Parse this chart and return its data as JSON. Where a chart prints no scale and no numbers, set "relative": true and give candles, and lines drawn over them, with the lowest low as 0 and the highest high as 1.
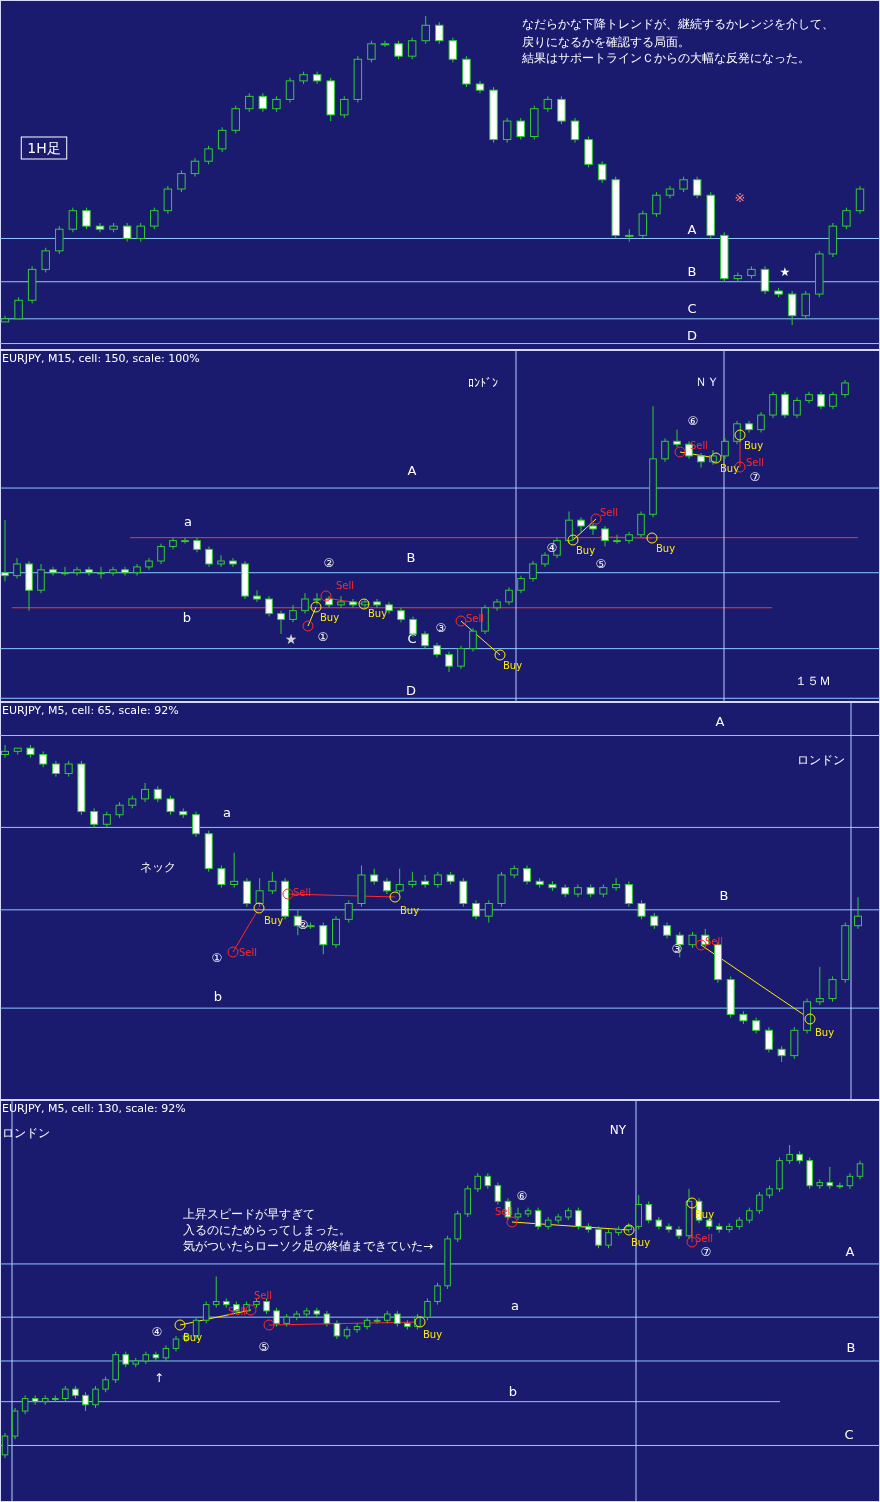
{
  "chart_data": [
    {
      "type": "candlestick",
      "relative": true,
      "tick_labels": false,
      "color": "#33cc33",
      "categories": [
        null,
        null,
        null,
        null,
        null,
        null,
        null,
        null,
        null,
        null,
        null,
        null,
        null,
        null,
        null,
        null,
        null,
        null,
        null,
        null,
        null,
        null,
        null,
        null,
        null,
        null,
        null,
        null,
        null,
        null,
        null,
        null,
        null,
        null,
        null,
        null,
        null,
        null,
        null,
        null,
        null,
        null,
        null,
        null,
        null,
        null,
        null,
        null,
        null,
        null,
        null,
        null,
        null,
        null,
        null,
        null,
        null,
        null,
        null,
        null,
        null,
        null,
        null,
        null
      ],
      "ohlc": [
        [
          0.01,
          0.03,
          0.01,
          0.02
        ],
        [
          0.02,
          0.09,
          0.02,
          0.08
        ],
        [
          0.08,
          0.19,
          0.07,
          0.18
        ],
        [
          0.18,
          0.25,
          0.17,
          0.24
        ],
        [
          0.24,
          0.32,
          0.23,
          0.31
        ],
        [
          0.31,
          0.38,
          0.3,
          0.37
        ],
        [
          0.37,
          0.38,
          0.31,
          0.32
        ],
        [
          0.32,
          0.33,
          0.3,
          0.31
        ],
        [
          0.31,
          0.33,
          0.3,
          0.32
        ],
        [
          0.32,
          0.33,
          0.27,
          0.28
        ],
        [
          0.28,
          0.33,
          0.27,
          0.32
        ],
        [
          0.32,
          0.38,
          0.31,
          0.37
        ],
        [
          0.37,
          0.45,
          0.36,
          0.44
        ],
        [
          0.44,
          0.5,
          0.43,
          0.49
        ],
        [
          0.49,
          0.54,
          0.48,
          0.53
        ],
        [
          0.53,
          0.58,
          0.52,
          0.57
        ],
        [
          0.57,
          0.64,
          0.56,
          0.63
        ],
        [
          0.63,
          0.71,
          0.62,
          0.7
        ],
        [
          0.7,
          0.75,
          0.69,
          0.74
        ],
        [
          0.74,
          0.75,
          0.69,
          0.7
        ],
        [
          0.7,
          0.74,
          0.69,
          0.73
        ],
        [
          0.73,
          0.8,
          0.72,
          0.79
        ],
        [
          0.79,
          0.82,
          0.78,
          0.81
        ],
        [
          0.81,
          0.82,
          0.78,
          0.79
        ],
        [
          0.79,
          0.8,
          0.66,
          0.68
        ],
        [
          0.68,
          0.74,
          0.67,
          0.73
        ],
        [
          0.73,
          0.87,
          0.72,
          0.86
        ],
        [
          0.86,
          0.92,
          0.85,
          0.91
        ],
        [
          0.91,
          0.92,
          0.9,
          0.91
        ],
        [
          0.91,
          0.92,
          0.86,
          0.87
        ],
        [
          0.87,
          0.93,
          0.86,
          0.92
        ],
        [
          0.92,
          1,
          0.91,
          0.97
        ],
        [
          0.97,
          0.98,
          0.91,
          0.92
        ],
        [
          0.92,
          0.93,
          0.85,
          0.86
        ],
        [
          0.86,
          0.87,
          0.77,
          0.78
        ],
        [
          0.78,
          0.79,
          0.75,
          0.76
        ],
        [
          0.76,
          0.77,
          0.59,
          0.6
        ],
        [
          0.6,
          0.67,
          0.59,
          0.66
        ],
        [
          0.66,
          0.67,
          0.6,
          0.61
        ],
        [
          0.61,
          0.71,
          0.6,
          0.7
        ],
        [
          0.7,
          0.74,
          0.69,
          0.73
        ],
        [
          0.73,
          0.74,
          0.65,
          0.66
        ],
        [
          0.66,
          0.67,
          0.59,
          0.6
        ],
        [
          0.6,
          0.61,
          0.51,
          0.52
        ],
        [
          0.52,
          0.53,
          0.46,
          0.47
        ],
        [
          0.47,
          0.48,
          0.28,
          0.29
        ],
        [
          0.29,
          0.31,
          0.27,
          0.29
        ],
        [
          0.29,
          0.37,
          0.28,
          0.36
        ],
        [
          0.36,
          0.43,
          0.35,
          0.42
        ],
        [
          0.42,
          0.45,
          0.41,
          0.44
        ],
        [
          0.44,
          0.48,
          0.43,
          0.47
        ],
        [
          0.47,
          0.48,
          0.41,
          0.42
        ],
        [
          0.42,
          0.43,
          0.28,
          0.29
        ],
        [
          0.29,
          0.3,
          0.14,
          0.15
        ],
        [
          0.15,
          0.17,
          0.14,
          0.16
        ],
        [
          0.16,
          0.19,
          0.15,
          0.18
        ],
        [
          0.18,
          0.19,
          0.1,
          0.11
        ],
        [
          0.11,
          0.12,
          0.09,
          0.1
        ],
        [
          0.1,
          0.11,
          0,
          0.03
        ],
        [
          0.03,
          0.11,
          0.02,
          0.1
        ],
        [
          0.1,
          0.24,
          0.09,
          0.23
        ],
        [
          0.23,
          0.33,
          0.22,
          0.32
        ],
        [
          0.32,
          0.38,
          0.31,
          0.37
        ],
        [
          0.37,
          0.45,
          0.36,
          0.44
        ]
      ],
      "ref_lines": [
        {
          "axis": "y",
          "value": 0.28,
          "label": "A",
          "color": "#8fc8ff"
        },
        {
          "axis": "y",
          "value": 0.14,
          "label": "B",
          "color": "#8fc8ff"
        },
        {
          "axis": "y",
          "value": 0.02,
          "label": "C",
          "color": "#8fc8ff"
        },
        {
          "axis": "y",
          "value": -0.06,
          "label": "D",
          "color": "#8fc8ff"
        }
      ],
      "annotations": [
        "なだらかな下降トレンドが、継続するかレンジを介して、",
        "戻りになるかを確認する局面。",
        "結果はサポートラインＣからの大幅な反発になった。",
        "1H足",
        "※",
        "★"
      ]
    },
    {
      "type": "candlestick",
      "relative": true,
      "tick_labels": false,
      "color": "#33cc33",
      "title": "EURJPY, M15, cell: 150, scale: 100%",
      "categories": [
        null,
        null,
        null,
        null,
        null,
        null,
        null,
        null,
        null,
        null,
        null,
        null,
        null,
        null,
        null,
        null,
        null,
        null,
        null,
        null,
        null,
        null,
        null,
        null,
        null,
        null,
        null,
        null,
        null,
        null,
        null,
        null,
        null,
        null,
        null,
        null,
        null,
        null,
        null,
        null,
        null,
        null,
        null,
        null,
        null,
        null,
        null,
        null,
        null,
        null,
        null,
        null,
        null,
        null,
        null,
        null,
        null,
        null,
        null,
        null,
        null,
        null,
        null,
        null,
        null,
        null,
        null,
        null,
        null,
        null,
        null
      ],
      "ohlc": [
        [
          0.34,
          0.52,
          0.31,
          0.33
        ],
        [
          0.33,
          0.39,
          0.32,
          0.37
        ],
        [
          0.37,
          0.38,
          0.21,
          0.28
        ],
        [
          0.28,
          0.37,
          0.27,
          0.35
        ],
        [
          0.35,
          0.36,
          0.33,
          0.34
        ],
        [
          0.34,
          0.36,
          0.33,
          0.34
        ],
        [
          0.34,
          0.36,
          0.33,
          0.35
        ],
        [
          0.35,
          0.36,
          0.33,
          0.34
        ],
        [
          0.34,
          0.36,
          0.32,
          0.34
        ],
        [
          0.34,
          0.36,
          0.33,
          0.35
        ],
        [
          0.35,
          0.36,
          0.33,
          0.34
        ],
        [
          0.34,
          0.37,
          0.33,
          0.36
        ],
        [
          0.36,
          0.39,
          0.35,
          0.38
        ],
        [
          0.38,
          0.44,
          0.37,
          0.43
        ],
        [
          0.43,
          0.46,
          0.42,
          0.45
        ],
        [
          0.45,
          0.46,
          0.44,
          0.45
        ],
        [
          0.45,
          0.46,
          0.41,
          0.42
        ],
        [
          0.42,
          0.43,
          0.36,
          0.37
        ],
        [
          0.37,
          0.4,
          0.36,
          0.38
        ],
        [
          0.38,
          0.39,
          0.36,
          0.37
        ],
        [
          0.37,
          0.38,
          0.25,
          0.26
        ],
        [
          0.26,
          0.28,
          0.24,
          0.25
        ],
        [
          0.25,
          0.26,
          0.19,
          0.2
        ],
        [
          0.2,
          0.21,
          0.13,
          0.18
        ],
        [
          0.18,
          0.23,
          0.17,
          0.21
        ],
        [
          0.21,
          0.27,
          0.2,
          0.25
        ],
        [
          0.25,
          0.27,
          0.23,
          0.25
        ],
        [
          0.25,
          0.26,
          0.22,
          0.23
        ],
        [
          0.23,
          0.26,
          0.22,
          0.24
        ],
        [
          0.24,
          0.25,
          0.22,
          0.23
        ],
        [
          0.23,
          0.25,
          0.22,
          0.24
        ],
        [
          0.24,
          0.25,
          0.22,
          0.23
        ],
        [
          0.23,
          0.24,
          0.2,
          0.21
        ],
        [
          0.21,
          0.22,
          0.17,
          0.18
        ],
        [
          0.18,
          0.19,
          0.12,
          0.13
        ],
        [
          0.13,
          0.14,
          0.08,
          0.09
        ],
        [
          0.09,
          0.1,
          0.05,
          0.06
        ],
        [
          0.06,
          0.07,
          0,
          0.02
        ],
        [
          0.02,
          0.09,
          0.01,
          0.08
        ],
        [
          0.08,
          0.15,
          0.07,
          0.14
        ],
        [
          0.14,
          0.23,
          0.13,
          0.22
        ],
        [
          0.22,
          0.25,
          0.21,
          0.24
        ],
        [
          0.24,
          0.29,
          0.23,
          0.28
        ],
        [
          0.28,
          0.33,
          0.27,
          0.32
        ],
        [
          0.32,
          0.38,
          0.31,
          0.37
        ],
        [
          0.37,
          0.41,
          0.36,
          0.4
        ],
        [
          0.4,
          0.46,
          0.39,
          0.45
        ],
        [
          0.45,
          0.55,
          0.44,
          0.52
        ],
        [
          0.52,
          0.53,
          0.48,
          0.5
        ],
        [
          0.5,
          0.51,
          0.47,
          0.49
        ],
        [
          0.49,
          0.5,
          0.43,
          0.45
        ],
        [
          0.45,
          0.47,
          0.44,
          0.45
        ],
        [
          0.45,
          0.48,
          0.44,
          0.47
        ],
        [
          0.47,
          0.55,
          0.46,
          0.54
        ],
        [
          0.54,
          0.91,
          0.53,
          0.73
        ],
        [
          0.73,
          0.8,
          0.72,
          0.79
        ],
        [
          0.79,
          0.83,
          0.77,
          0.78
        ],
        [
          0.78,
          0.79,
          0.73,
          0.74
        ],
        [
          0.74,
          0.75,
          0.7,
          0.72
        ],
        [
          0.72,
          0.76,
          0.71,
          0.74
        ],
        [
          0.74,
          0.8,
          0.73,
          0.79
        ],
        [
          0.79,
          0.86,
          0.78,
          0.85
        ],
        [
          0.85,
          0.86,
          0.82,
          0.83
        ],
        [
          0.83,
          0.89,
          0.82,
          0.88
        ],
        [
          0.88,
          0.96,
          0.87,
          0.95
        ],
        [
          0.95,
          0.96,
          0.87,
          0.88
        ],
        [
          0.88,
          0.94,
          0.87,
          0.93
        ],
        [
          0.93,
          0.96,
          0.92,
          0.95
        ],
        [
          0.95,
          0.96,
          0.9,
          0.91
        ],
        [
          0.91,
          0.96,
          0.9,
          0.95
        ],
        [
          0.95,
          1,
          0.94,
          0.99
        ]
      ],
      "ref_lines": [
        {
          "axis": "y",
          "value": 0.63,
          "label": "A",
          "color": "#8fc8ff"
        },
        {
          "axis": "y",
          "value": 0.46,
          "label": "a",
          "color": "#ff3a1a"
        },
        {
          "axis": "y",
          "value": 0.34,
          "label": "B",
          "color": "#8fc8ff"
        },
        {
          "axis": "y",
          "value": 0.22,
          "label": "b",
          "color": "#ff3a1a"
        },
        {
          "axis": "y",
          "value": 0.08,
          "label": "C",
          "color": "#8fc8ff"
        },
        {
          "axis": "y",
          "value": -0.09,
          "label": "D",
          "color": "#8fc8ff"
        }
      ],
      "annotations": [
        "ﾛﾝﾄﾞﾝ",
        "ＮＹ",
        "１５Ｍ",
        "★",
        "①",
        "②",
        "③",
        "④",
        "⑤",
        "⑥",
        "⑦",
        "Buy",
        "Buy",
        "Buy",
        "Buy",
        "Buy",
        "Buy",
        "Buy",
        "Sell",
        "Sell",
        "Sell",
        "Sell",
        "Sell"
      ]
    },
    {
      "type": "candlestick",
      "relative": true,
      "tick_labels": false,
      "color": "#33cc33",
      "title": "EURJPY, M5, cell: 65, scale: 92%",
      "categories": [
        null,
        null,
        null,
        null,
        null,
        null,
        null,
        null,
        null,
        null,
        null,
        null,
        null,
        null,
        null,
        null,
        null,
        null,
        null,
        null,
        null,
        null,
        null,
        null,
        null,
        null,
        null,
        null,
        null,
        null,
        null,
        null,
        null,
        null,
        null,
        null,
        null,
        null,
        null,
        null,
        null,
        null,
        null,
        null,
        null,
        null,
        null,
        null,
        null,
        null,
        null,
        null,
        null,
        null,
        null,
        null,
        null,
        null,
        null,
        null,
        null,
        null,
        null,
        null,
        null,
        null,
        null,
        null
      ],
      "ohlc": [
        [
          0.97,
          1,
          0.96,
          0.98
        ],
        [
          0.98,
          0.99,
          0.97,
          0.99
        ],
        [
          0.99,
          1,
          0.96,
          0.97
        ],
        [
          0.97,
          0.98,
          0.93,
          0.94
        ],
        [
          0.94,
          0.95,
          0.9,
          0.91
        ],
        [
          0.91,
          0.95,
          0.9,
          0.94
        ],
        [
          0.94,
          0.95,
          0.78,
          0.79
        ],
        [
          0.79,
          0.8,
          0.74,
          0.75
        ],
        [
          0.75,
          0.79,
          0.74,
          0.78
        ],
        [
          0.78,
          0.82,
          0.77,
          0.81
        ],
        [
          0.81,
          0.84,
          0.8,
          0.83
        ],
        [
          0.83,
          0.88,
          0.82,
          0.86
        ],
        [
          0.86,
          0.87,
          0.82,
          0.83
        ],
        [
          0.83,
          0.84,
          0.78,
          0.79
        ],
        [
          0.79,
          0.8,
          0.77,
          0.78
        ],
        [
          0.78,
          0.79,
          0.71,
          0.72
        ],
        [
          0.72,
          0.73,
          0.6,
          0.61
        ],
        [
          0.61,
          0.62,
          0.55,
          0.56
        ],
        [
          0.56,
          0.66,
          0.55,
          0.57
        ],
        [
          0.57,
          0.58,
          0.49,
          0.5
        ],
        [
          0.5,
          0.58,
          0.49,
          0.54
        ],
        [
          0.54,
          0.6,
          0.53,
          0.57
        ],
        [
          0.57,
          0.58,
          0.45,
          0.46
        ],
        [
          0.46,
          0.48,
          0.4,
          0.43
        ],
        [
          0.43,
          0.44,
          0.42,
          0.43
        ],
        [
          0.43,
          0.44,
          0.34,
          0.37
        ],
        [
          0.37,
          0.46,
          0.36,
          0.45
        ],
        [
          0.45,
          0.51,
          0.44,
          0.5
        ],
        [
          0.5,
          0.62,
          0.49,
          0.59
        ],
        [
          0.59,
          0.61,
          0.56,
          0.57
        ],
        [
          0.57,
          0.58,
          0.53,
          0.54
        ],
        [
          0.54,
          0.61,
          0.53,
          0.56
        ],
        [
          0.56,
          0.6,
          0.55,
          0.57
        ],
        [
          0.57,
          0.59,
          0.55,
          0.56
        ],
        [
          0.56,
          0.6,
          0.55,
          0.59
        ],
        [
          0.59,
          0.6,
          0.56,
          0.57
        ],
        [
          0.57,
          0.58,
          0.49,
          0.5
        ],
        [
          0.5,
          0.51,
          0.45,
          0.46
        ],
        [
          0.46,
          0.51,
          0.44,
          0.5
        ],
        [
          0.5,
          0.6,
          0.49,
          0.59
        ],
        [
          0.59,
          0.62,
          0.58,
          0.61
        ],
        [
          0.61,
          0.62,
          0.56,
          0.57
        ],
        [
          0.57,
          0.58,
          0.55,
          0.56
        ],
        [
          0.56,
          0.57,
          0.54,
          0.55
        ],
        [
          0.55,
          0.56,
          0.52,
          0.53
        ],
        [
          0.53,
          0.56,
          0.52,
          0.55
        ],
        [
          0.55,
          0.56,
          0.52,
          0.53
        ],
        [
          0.53,
          0.56,
          0.52,
          0.55
        ],
        [
          0.55,
          0.58,
          0.54,
          0.56
        ],
        [
          0.56,
          0.57,
          0.49,
          0.5
        ],
        [
          0.5,
          0.51,
          0.45,
          0.46
        ],
        [
          0.46,
          0.47,
          0.42,
          0.43
        ],
        [
          0.43,
          0.44,
          0.39,
          0.4
        ],
        [
          0.4,
          0.41,
          0.33,
          0.37
        ],
        [
          0.37,
          0.41,
          0.36,
          0.4
        ],
        [
          0.4,
          0.42,
          0.36,
          0.37
        ],
        [
          0.37,
          0.38,
          0.25,
          0.26
        ],
        [
          0.26,
          0.27,
          0.14,
          0.15
        ],
        [
          0.15,
          0.16,
          0.12,
          0.13
        ],
        [
          0.13,
          0.14,
          0.09,
          0.1
        ],
        [
          0.1,
          0.11,
          0.03,
          0.04
        ],
        [
          0.04,
          0.05,
          0,
          0.02
        ],
        [
          0.02,
          0.11,
          0.01,
          0.1
        ],
        [
          0.1,
          0.2,
          0.09,
          0.19
        ],
        [
          0.19,
          0.3,
          0.18,
          0.2
        ],
        [
          0.2,
          0.27,
          0.19,
          0.26
        ],
        [
          0.26,
          0.44,
          0.25,
          0.43
        ],
        [
          0.43,
          0.52,
          0.42,
          0.46
        ]
      ],
      "ref_lines": [
        {
          "axis": "y",
          "value": 1.03,
          "label": "A",
          "color": "#8fc8ff"
        },
        {
          "axis": "y",
          "value": 0.74,
          "label": "a",
          "color": "#8fc8ff"
        },
        {
          "axis": "y",
          "value": 0.48,
          "label": "B",
          "color": "#8fc8ff"
        },
        {
          "axis": "y",
          "value": 0.17,
          "label": "b",
          "color": "#8fc8ff"
        }
      ],
      "annotations": [
        "ロンドン",
        "ネック",
        "①",
        "②",
        "③",
        "Buy",
        "Buy",
        "Buy",
        "Sell",
        "Sell",
        "Sell"
      ]
    },
    {
      "type": "candlestick",
      "relative": true,
      "tick_labels": false,
      "color": "#33cc33",
      "title": "EURJPY, M5, cell: 130, scale: 92%",
      "categories": [
        null,
        null,
        null,
        null,
        null,
        null,
        null,
        null,
        null,
        null,
        null,
        null,
        null,
        null,
        null,
        null,
        null,
        null,
        null,
        null,
        null,
        null,
        null,
        null,
        null,
        null,
        null,
        null,
        null,
        null,
        null,
        null,
        null,
        null,
        null,
        null,
        null,
        null,
        null,
        null,
        null,
        null,
        null,
        null,
        null,
        null,
        null,
        null,
        null,
        null,
        null,
        null,
        null,
        null,
        null,
        null,
        null,
        null,
        null,
        null,
        null,
        null,
        null,
        null,
        null,
        null,
        null,
        null,
        null,
        null,
        null,
        null,
        null,
        null,
        null,
        null,
        null,
        null,
        null,
        null,
        null,
        null,
        null,
        null,
        null,
        null
      ],
      "ohlc": [
        [
          0.01,
          0.08,
          0,
          0.07
        ],
        [
          0.07,
          0.16,
          0.06,
          0.15
        ],
        [
          0.15,
          0.2,
          0.14,
          0.19
        ],
        [
          0.19,
          0.2,
          0.17,
          0.18
        ],
        [
          0.18,
          0.2,
          0.17,
          0.19
        ],
        [
          0.19,
          0.2,
          0.18,
          0.19
        ],
        [
          0.19,
          0.23,
          0.18,
          0.22
        ],
        [
          0.22,
          0.23,
          0.19,
          0.2
        ],
        [
          0.2,
          0.21,
          0.15,
          0.17
        ],
        [
          0.17,
          0.23,
          0.16,
          0.22
        ],
        [
          0.22,
          0.26,
          0.21,
          0.25
        ],
        [
          0.25,
          0.34,
          0.24,
          0.33
        ],
        [
          0.33,
          0.34,
          0.29,
          0.3
        ],
        [
          0.3,
          0.32,
          0.29,
          0.31
        ],
        [
          0.31,
          0.34,
          0.3,
          0.33
        ],
        [
          0.33,
          0.34,
          0.31,
          0.32
        ],
        [
          0.32,
          0.36,
          0.31,
          0.35
        ],
        [
          0.35,
          0.39,
          0.34,
          0.38
        ],
        [
          0.38,
          0.4,
          0.37,
          0.39
        ],
        [
          0.39,
          0.45,
          0.38,
          0.44
        ],
        [
          0.44,
          0.5,
          0.43,
          0.49
        ],
        [
          0.49,
          0.58,
          0.48,
          0.5
        ],
        [
          0.5,
          0.51,
          0.48,
          0.49
        ],
        [
          0.49,
          0.5,
          0.46,
          0.47
        ],
        [
          0.47,
          0.5,
          0.46,
          0.49
        ],
        [
          0.49,
          0.51,
          0.48,
          0.5
        ],
        [
          0.5,
          0.51,
          0.46,
          0.47
        ],
        [
          0.47,
          0.48,
          0.42,
          0.43
        ],
        [
          0.43,
          0.46,
          0.42,
          0.45
        ],
        [
          0.45,
          0.47,
          0.44,
          0.46
        ],
        [
          0.46,
          0.48,
          0.45,
          0.47
        ],
        [
          0.47,
          0.48,
          0.45,
          0.46
        ],
        [
          0.46,
          0.47,
          0.42,
          0.43
        ],
        [
          0.43,
          0.44,
          0.38,
          0.39
        ],
        [
          0.39,
          0.42,
          0.38,
          0.41
        ],
        [
          0.41,
          0.43,
          0.4,
          0.42
        ],
        [
          0.42,
          0.45,
          0.41,
          0.44
        ],
        [
          0.44,
          0.45,
          0.43,
          0.44
        ],
        [
          0.44,
          0.47,
          0.43,
          0.46
        ],
        [
          0.46,
          0.47,
          0.42,
          0.43
        ],
        [
          0.43,
          0.44,
          0.41,
          0.42
        ],
        [
          0.42,
          0.46,
          0.41,
          0.45
        ],
        [
          0.45,
          0.51,
          0.44,
          0.5
        ],
        [
          0.5,
          0.56,
          0.49,
          0.55
        ],
        [
          0.55,
          0.71,
          0.54,
          0.7
        ],
        [
          0.7,
          0.79,
          0.69,
          0.78
        ],
        [
          0.78,
          0.87,
          0.77,
          0.86
        ],
        [
          0.86,
          0.91,
          0.85,
          0.9
        ],
        [
          0.9,
          0.91,
          0.86,
          0.87
        ],
        [
          0.87,
          0.88,
          0.81,
          0.82
        ],
        [
          0.82,
          0.83,
          0.76,
          0.77
        ],
        [
          0.77,
          0.8,
          0.76,
          0.78
        ],
        [
          0.78,
          0.8,
          0.77,
          0.79
        ],
        [
          0.79,
          0.8,
          0.73,
          0.74
        ],
        [
          0.74,
          0.77,
          0.73,
          0.76
        ],
        [
          0.76,
          0.78,
          0.75,
          0.77
        ],
        [
          0.77,
          0.8,
          0.76,
          0.79
        ],
        [
          0.79,
          0.8,
          0.73,
          0.74
        ],
        [
          0.74,
          0.75,
          0.72,
          0.73
        ],
        [
          0.73,
          0.74,
          0.67,
          0.68
        ],
        [
          0.68,
          0.73,
          0.67,
          0.72
        ],
        [
          0.72,
          0.74,
          0.71,
          0.73
        ],
        [
          0.73,
          0.75,
          0.72,
          0.74
        ],
        [
          0.74,
          0.84,
          0.73,
          0.81
        ],
        [
          0.81,
          0.82,
          0.75,
          0.76
        ],
        [
          0.76,
          0.77,
          0.73,
          0.74
        ],
        [
          0.74,
          0.75,
          0.72,
          0.73
        ],
        [
          0.73,
          0.74,
          0.7,
          0.71
        ],
        [
          0.71,
          0.86,
          0.7,
          0.82
        ],
        [
          0.82,
          0.83,
          0.75,
          0.76
        ],
        [
          0.76,
          0.77,
          0.73,
          0.74
        ],
        [
          0.74,
          0.75,
          0.72,
          0.73
        ],
        [
          0.73,
          0.75,
          0.72,
          0.74
        ],
        [
          0.74,
          0.77,
          0.73,
          0.76
        ],
        [
          0.76,
          0.8,
          0.75,
          0.79
        ],
        [
          0.79,
          0.85,
          0.78,
          0.84
        ],
        [
          0.84,
          0.87,
          0.83,
          0.86
        ],
        [
          0.86,
          0.96,
          0.85,
          0.95
        ],
        [
          0.95,
          1,
          0.94,
          0.97
        ],
        [
          0.97,
          0.98,
          0.94,
          0.95
        ],
        [
          0.95,
          0.96,
          0.86,
          0.87
        ],
        [
          0.87,
          0.89,
          0.86,
          0.88
        ],
        [
          0.88,
          0.93,
          0.86,
          0.87
        ],
        [
          0.87,
          0.88,
          0.86,
          0.87
        ],
        [
          0.87,
          0.91,
          0.86,
          0.9
        ],
        [
          0.9,
          0.95,
          0.89,
          0.94
        ]
      ],
      "ref_lines": [
        {
          "axis": "y",
          "value": 0.62,
          "label": "A",
          "color": "#8fc8ff"
        },
        {
          "axis": "y",
          "value": 0.45,
          "label": "a",
          "color": "#8fc8ff"
        },
        {
          "axis": "y",
          "value": 0.31,
          "label": "B",
          "color": "#8fc8ff"
        },
        {
          "axis": "y",
          "value": 0.18,
          "label": "b",
          "color": "#8fc8ff"
        },
        {
          "axis": "y",
          "value": 0.04,
          "label": "C",
          "color": "#8fc8ff"
        }
      ],
      "annotations": [
        "ロンドン",
        "NY",
        "上昇スピードが早すぎて",
        "入るのにためらってしまった。",
        "気がついたらローソク足の終値まできていた→",
        "↑",
        "④",
        "⑤",
        "⑥",
        "⑦",
        "Buy",
        "Buy",
        "Buy",
        "Buy",
        "Sell",
        "Sell",
        "Sell",
        "Sell"
      ]
    }
  ]
}
